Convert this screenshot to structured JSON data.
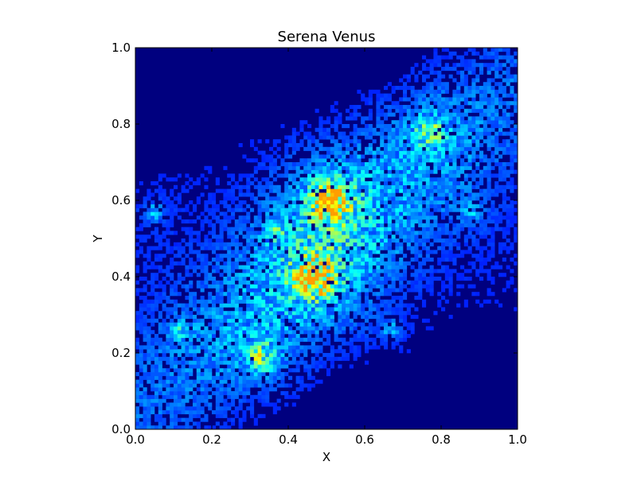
{
  "chart_data": {
    "type": "heatmap",
    "title": "Serena Venus",
    "xlabel": "X",
    "ylabel": "Y",
    "xlim": [
      0.0,
      1.0
    ],
    "ylim": [
      0.0,
      1.0
    ],
    "xticks": [
      "0.0",
      "0.2",
      "0.4",
      "0.6",
      "0.8",
      "1.0"
    ],
    "yticks": [
      "0.0",
      "0.2",
      "0.4",
      "0.6",
      "0.8",
      "1.0"
    ],
    "grid": false,
    "legend": "none",
    "colormap": "jet",
    "background_color": "#00007f",
    "bins": [
      100,
      100
    ],
    "hotspots": [
      {
        "x": 0.47,
        "y": 0.4,
        "intensity": "high"
      },
      {
        "x": 0.51,
        "y": 0.6,
        "intensity": "high"
      },
      {
        "x": 0.33,
        "y": 0.19,
        "intensity": "medium"
      },
      {
        "x": 0.77,
        "y": 0.78,
        "intensity": "medium"
      },
      {
        "x": 0.37,
        "y": 0.52,
        "intensity": "low"
      },
      {
        "x": 0.88,
        "y": 0.57,
        "intensity": "low"
      },
      {
        "x": 0.05,
        "y": 0.57,
        "intensity": "low"
      },
      {
        "x": 0.12,
        "y": 0.26,
        "intensity": "low"
      },
      {
        "x": 0.67,
        "y": 0.26,
        "intensity": "low"
      }
    ]
  }
}
